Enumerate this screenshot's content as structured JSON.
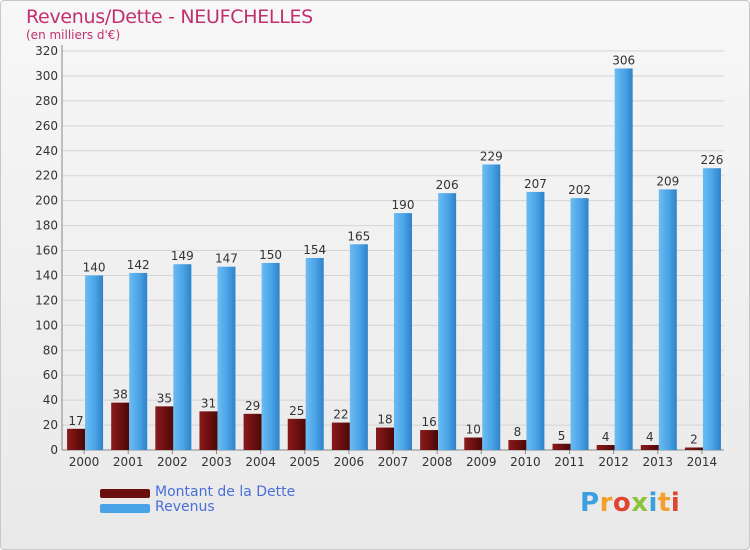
{
  "title": "Revenus/Dette - NEUFCHELLES",
  "subtitle": "(en milliers d'€)",
  "logo": {
    "letters": [
      "P",
      "r",
      "o",
      "x",
      "i",
      "t",
      "i"
    ],
    "colors": [
      "#3aa0e0",
      "#f2a02a",
      "#e0452f",
      "#8bc33a",
      "#3aa0e0",
      "#f2a02a",
      "#e0452f"
    ]
  },
  "legend": [
    {
      "label": "Montant de la Dette",
      "color": "#6b0f0f"
    },
    {
      "label": "Revenus",
      "color": "#4aa3e6"
    }
  ],
  "chart_data": {
    "type": "bar",
    "categories": [
      "2000",
      "2001",
      "2002",
      "2003",
      "2004",
      "2005",
      "2006",
      "2007",
      "2008",
      "2009",
      "2010",
      "2011",
      "2012",
      "2013",
      "2014"
    ],
    "series": [
      {
        "name": "Montant de la Dette",
        "color": "#6b0f0f",
        "values": [
          17,
          38,
          35,
          31,
          29,
          25,
          22,
          18,
          16,
          10,
          8,
          5,
          4,
          4,
          2
        ]
      },
      {
        "name": "Revenus",
        "color": "#4aa3e6",
        "values": [
          140,
          142,
          149,
          147,
          150,
          154,
          165,
          190,
          206,
          229,
          207,
          202,
          306,
          209,
          226
        ]
      }
    ],
    "ylim": [
      0,
      320
    ],
    "yticks": [
      0,
      20,
      40,
      60,
      80,
      100,
      120,
      140,
      160,
      180,
      200,
      220,
      240,
      260,
      280,
      300,
      320
    ],
    "grid": true,
    "legend_position": "bottom-left"
  }
}
